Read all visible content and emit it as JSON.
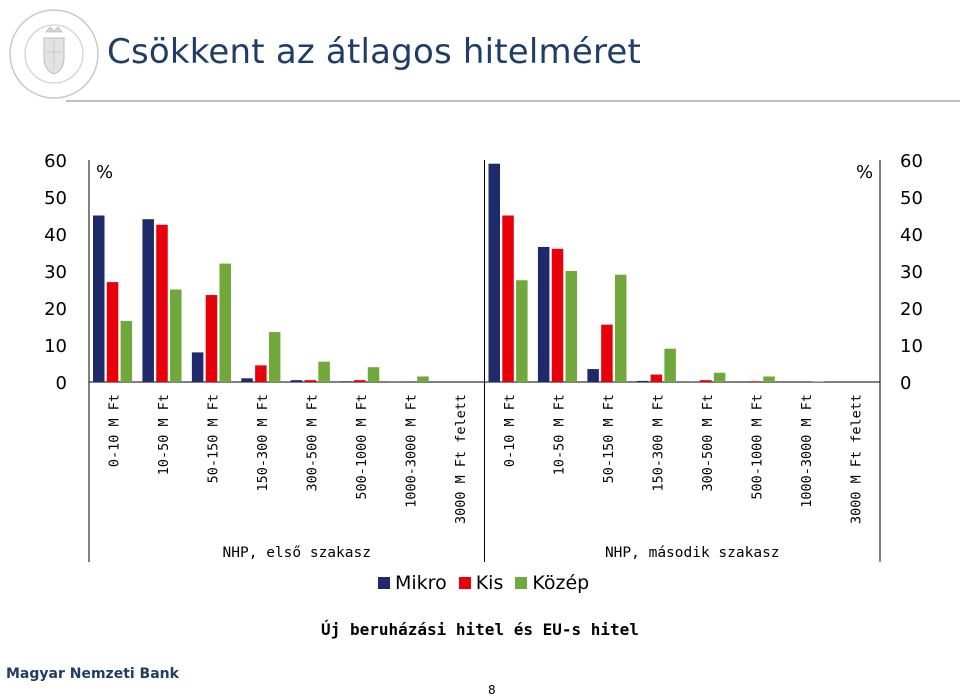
{
  "slide": {
    "title": "Csökkent az átlagos hitelméret",
    "subtitle": "Új beruházási hitel és EU-s hitel",
    "footer": "Magyar Nemzeti Bank",
    "page_number": "8",
    "logo_text": "MAGYAR NEMZETI BANK"
  },
  "legend": {
    "items": [
      {
        "label": "Mikro",
        "color": "#1f2a6b"
      },
      {
        "label": "Kis",
        "color": "#e8000b"
      },
      {
        "label": "Közép",
        "color": "#70a83b"
      }
    ]
  },
  "chart_data": {
    "type": "bar",
    "left_unit": "%",
    "right_unit": "%",
    "ylim": [
      0,
      60
    ],
    "yticks": [
      "60",
      "50",
      "40",
      "30",
      "20",
      "10",
      "0"
    ],
    "categories": [
      "0-10 M Ft",
      "10-50 M Ft",
      "50-150 M Ft",
      "150-300 M Ft",
      "300-500 M Ft",
      "500-1000 M Ft",
      "1000-3000 M Ft",
      "3000 M Ft felett"
    ],
    "groups": [
      {
        "label": "NHP, első szakasz",
        "series": [
          {
            "name": "Mikro",
            "values": [
              45,
              44,
              8,
              1,
              0.5,
              0.2,
              0.1,
              0
            ]
          },
          {
            "name": "Kis",
            "values": [
              27,
              42.5,
              23.5,
              4.5,
              0.5,
              0.5,
              0,
              0
            ]
          },
          {
            "name": "Közép",
            "values": [
              16.5,
              25,
              32,
              13.5,
              5.5,
              4,
              1.5,
              0
            ]
          }
        ]
      },
      {
        "label": "NHP, második szakasz",
        "series": [
          {
            "name": "Mikro",
            "values": [
              59,
              36.5,
              3.5,
              0.3,
              0.1,
              0,
              0,
              0
            ]
          },
          {
            "name": "Kis",
            "values": [
              45,
              36,
              15.5,
              2,
              0.5,
              0.2,
              0,
              0
            ]
          },
          {
            "name": "Közép",
            "values": [
              27.5,
              30,
              29,
              9,
              2.5,
              1.5,
              0.1,
              0
            ]
          }
        ]
      }
    ]
  }
}
